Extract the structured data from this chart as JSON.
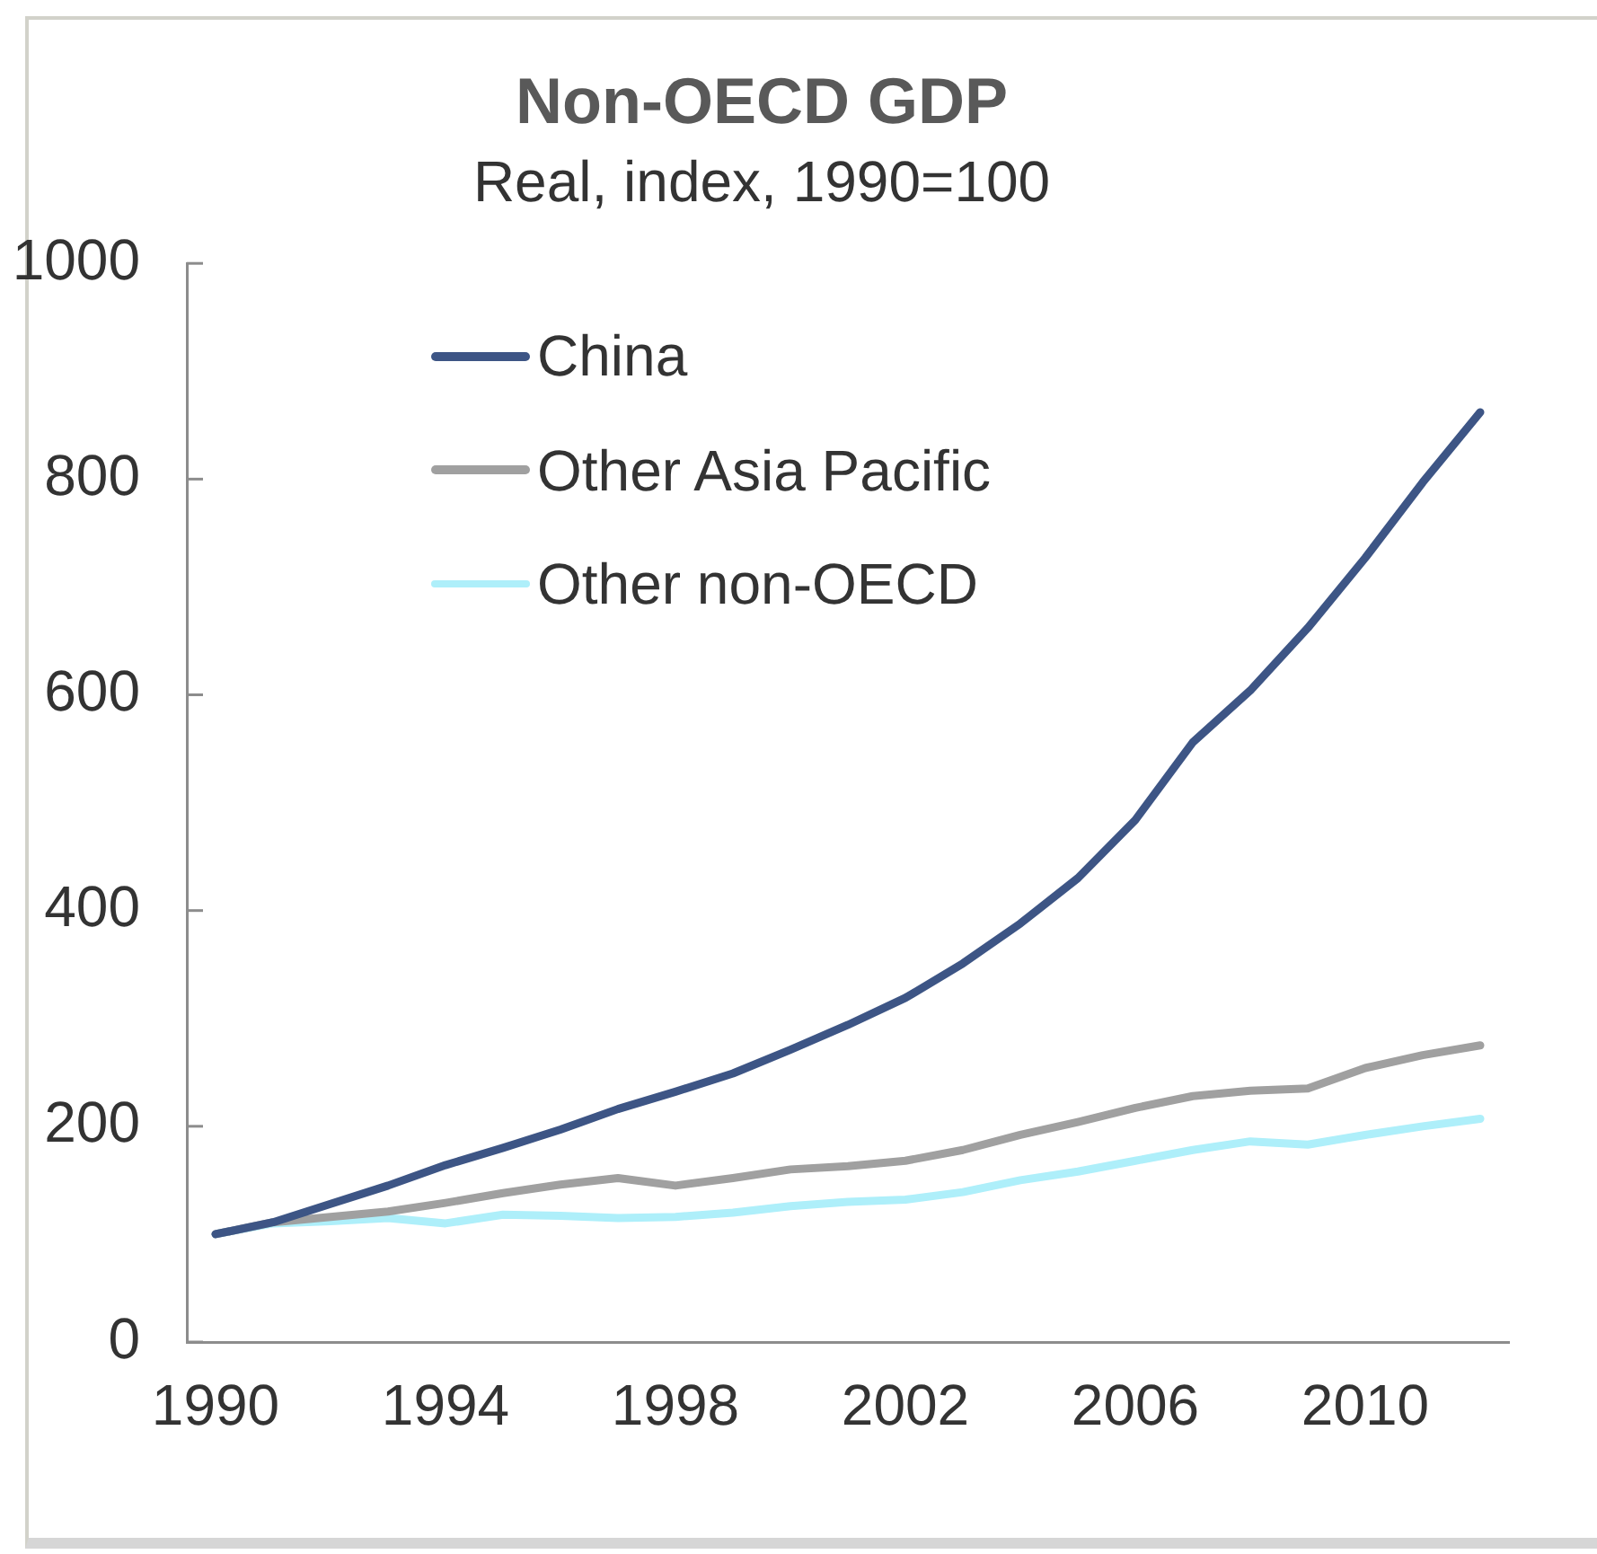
{
  "chart_data": {
    "type": "line",
    "title": "Non-OECD GDP",
    "subtitle": "Real, index, 1990=100",
    "x": [
      1990,
      1991,
      1992,
      1993,
      1994,
      1995,
      1996,
      1997,
      1998,
      1999,
      2000,
      2001,
      2002,
      2003,
      2004,
      2005,
      2006,
      2007,
      2008,
      2009,
      2010,
      2011,
      2012
    ],
    "xlim": [
      1989.5,
      2012.5
    ],
    "xticks": [
      1990,
      1994,
      1998,
      2002,
      2006,
      2010
    ],
    "ylim": [
      0,
      1000
    ],
    "yticks": [
      0,
      200,
      400,
      600,
      800,
      1000
    ],
    "grid": false,
    "legend": "top left",
    "marker": "none",
    "series": [
      {
        "name": "China",
        "color": "#3d5585",
        "values": [
          100,
          111,
          128,
          145,
          164,
          180,
          197,
          216,
          232,
          249,
          271,
          294,
          319,
          351,
          388,
          430,
          484,
          556,
          604,
          662,
          727,
          797,
          862
        ]
      },
      {
        "name": "Other Asia Pacific",
        "color": "#a0a0a0",
        "values": [
          100,
          111,
          116,
          121,
          129,
          138,
          146,
          152,
          145,
          152,
          160,
          163,
          168,
          178,
          192,
          204,
          217,
          228,
          233,
          235,
          254,
          266,
          275
        ]
      },
      {
        "name": "Other non-OECD",
        "color": "#aeeffa",
        "values": [
          100,
          110,
          112,
          115,
          110,
          118,
          117,
          115,
          116,
          120,
          126,
          130,
          132,
          139,
          150,
          158,
          168,
          178,
          186,
          183,
          192,
          200,
          207
        ]
      }
    ]
  }
}
